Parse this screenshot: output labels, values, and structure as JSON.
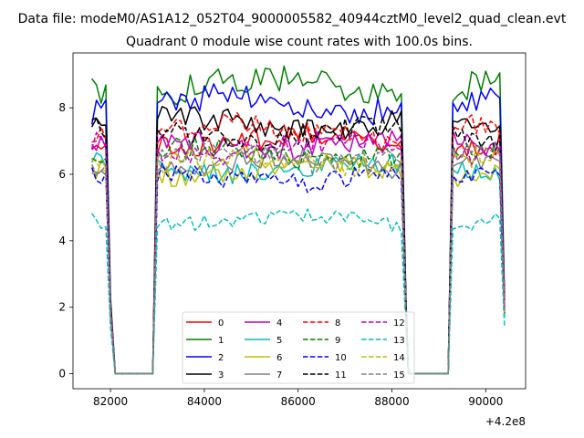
{
  "chart_data": {
    "type": "line",
    "suptitle": "Data file: modeM0/AS1A12_052T04_9000005582_40944cztM0_level2_quad_clean.evt",
    "title": "Quadrant 0 module wise count rates with 100.0s bins.",
    "xlabel": "",
    "ylabel": "",
    "x_offset_label": "+4.2e8",
    "x_offset": 420000000,
    "xlim": [
      81200,
      90850
    ],
    "ylim": [
      -0.45,
      9.65
    ],
    "xticks": [
      82000,
      84000,
      86000,
      88000,
      90000
    ],
    "xtick_labels": [
      "82000",
      "84000",
      "86000",
      "88000",
      "90000"
    ],
    "yticks": [
      0,
      2,
      4,
      6,
      8
    ],
    "ytick_labels": [
      "0",
      "2",
      "4",
      "6",
      "8"
    ],
    "legend_position": "lower-center",
    "segments": [
      [
        81600,
        82000
      ],
      [
        83000,
        88250
      ],
      [
        89300,
        90400
      ]
    ],
    "bin_seconds": 100,
    "series": [
      {
        "name": "0",
        "color": "#ff0000",
        "dash": "solid",
        "base": 7.0,
        "seg_end": 1.8
      },
      {
        "name": "1",
        "color": "#008000",
        "dash": "solid",
        "base": 8.65,
        "seg_end": 2.3
      },
      {
        "name": "2",
        "color": "#0000ff",
        "dash": "solid",
        "base": 8.1,
        "seg_end": 2.2
      },
      {
        "name": "3",
        "color": "#000000",
        "dash": "solid",
        "base": 7.5,
        "seg_end": 2.1
      },
      {
        "name": "4",
        "color": "#bf00bf",
        "dash": "solid",
        "base": 6.9,
        "seg_end": 1.9
      },
      {
        "name": "5",
        "color": "#00bfbf",
        "dash": "solid",
        "base": 6.2,
        "seg_end": 1.7
      },
      {
        "name": "6",
        "color": "#bfbf00",
        "dash": "solid",
        "base": 6.1,
        "seg_end": 1.8
      },
      {
        "name": "7",
        "color": "#808080",
        "dash": "solid",
        "base": 6.3,
        "seg_end": 1.8
      },
      {
        "name": "8",
        "color": "#ff0000",
        "dash": "dashed",
        "base": 7.3,
        "seg_end": 2.0
      },
      {
        "name": "9",
        "color": "#008000",
        "dash": "dashed",
        "base": 6.6,
        "seg_end": 1.9
      },
      {
        "name": "10",
        "color": "#0000ff",
        "dash": "dashed",
        "base": 5.9,
        "seg_end": 1.8
      },
      {
        "name": "11",
        "color": "#000000",
        "dash": "dashed",
        "base": 7.2,
        "seg_end": 2.0
      },
      {
        "name": "12",
        "color": "#bf00bf",
        "dash": "dashed",
        "base": 6.8,
        "seg_end": 1.9
      },
      {
        "name": "13",
        "color": "#00bfbf",
        "dash": "dashed",
        "base": 4.6,
        "seg_end": 1.4
      },
      {
        "name": "14",
        "color": "#bfbf00",
        "dash": "dashed",
        "base": 6.4,
        "seg_end": 1.8
      },
      {
        "name": "15",
        "color": "#808080",
        "dash": "dashed",
        "base": 6.5,
        "seg_end": 1.9
      }
    ]
  }
}
